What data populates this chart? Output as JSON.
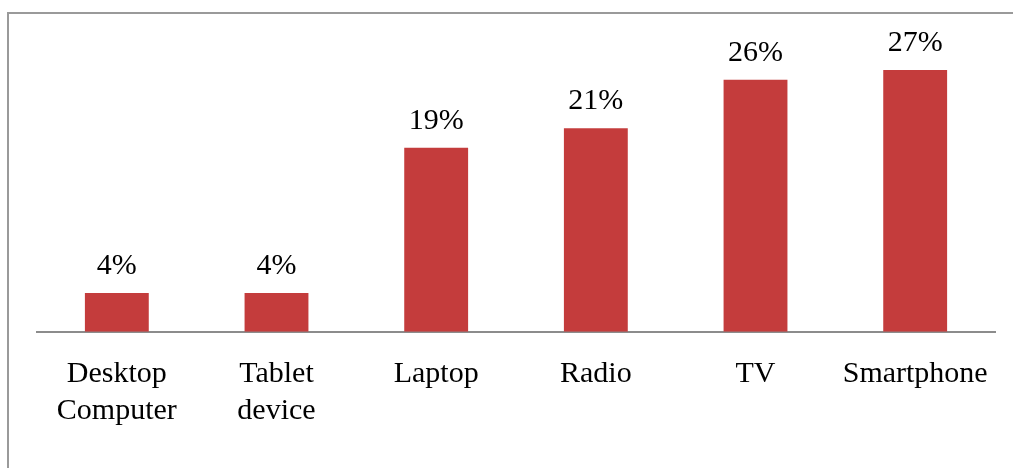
{
  "chart_data": {
    "type": "bar",
    "categories": [
      "Desktop Computer",
      "Tablet device",
      "Laptop",
      "Radio",
      "TV",
      "Smartphone"
    ],
    "values": [
      4,
      4,
      19,
      21,
      26,
      27
    ],
    "value_labels": [
      "4%",
      "4%",
      "19%",
      "21%",
      "26%",
      "27%"
    ],
    "color": "#c43c3c",
    "tick_labels": "x"
  }
}
